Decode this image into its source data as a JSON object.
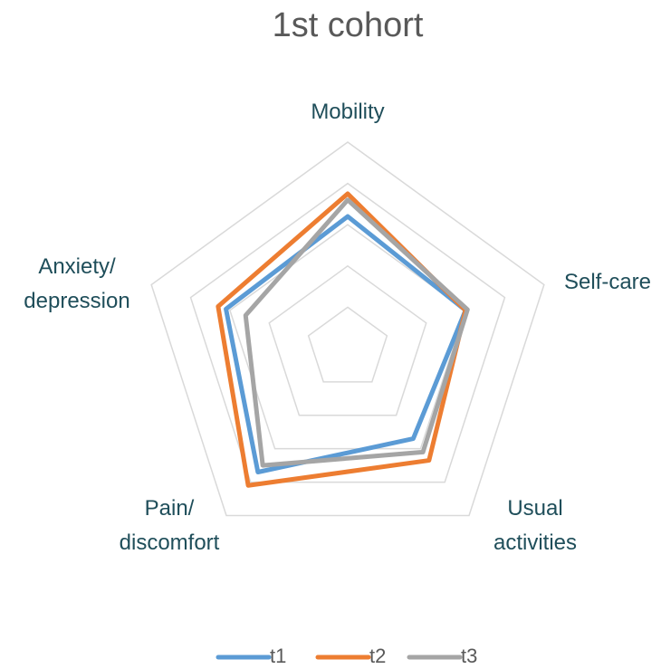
{
  "chart_data": {
    "type": "radar",
    "title": "1st cohort",
    "categories": [
      "Mobility",
      "Self-care",
      "Usual activities",
      "Pain/ discomfort",
      "Anxiety/ depression"
    ],
    "rlim": [
      0,
      5
    ],
    "rticks": [
      1,
      2,
      3,
      4,
      5
    ],
    "grid": true,
    "legend": "bottom",
    "series": [
      {
        "name": "t1",
        "color": "#5b9bd5",
        "values": [
          3.2,
          3.0,
          2.7,
          3.7,
          3.1
        ]
      },
      {
        "name": "t2",
        "color": "#ed7d31",
        "values": [
          3.75,
          3.0,
          3.35,
          4.1,
          3.3
        ]
      },
      {
        "name": "t3",
        "color": "#a5a5a5",
        "values": [
          3.6,
          3.05,
          3.1,
          3.5,
          2.6
        ]
      }
    ]
  }
}
